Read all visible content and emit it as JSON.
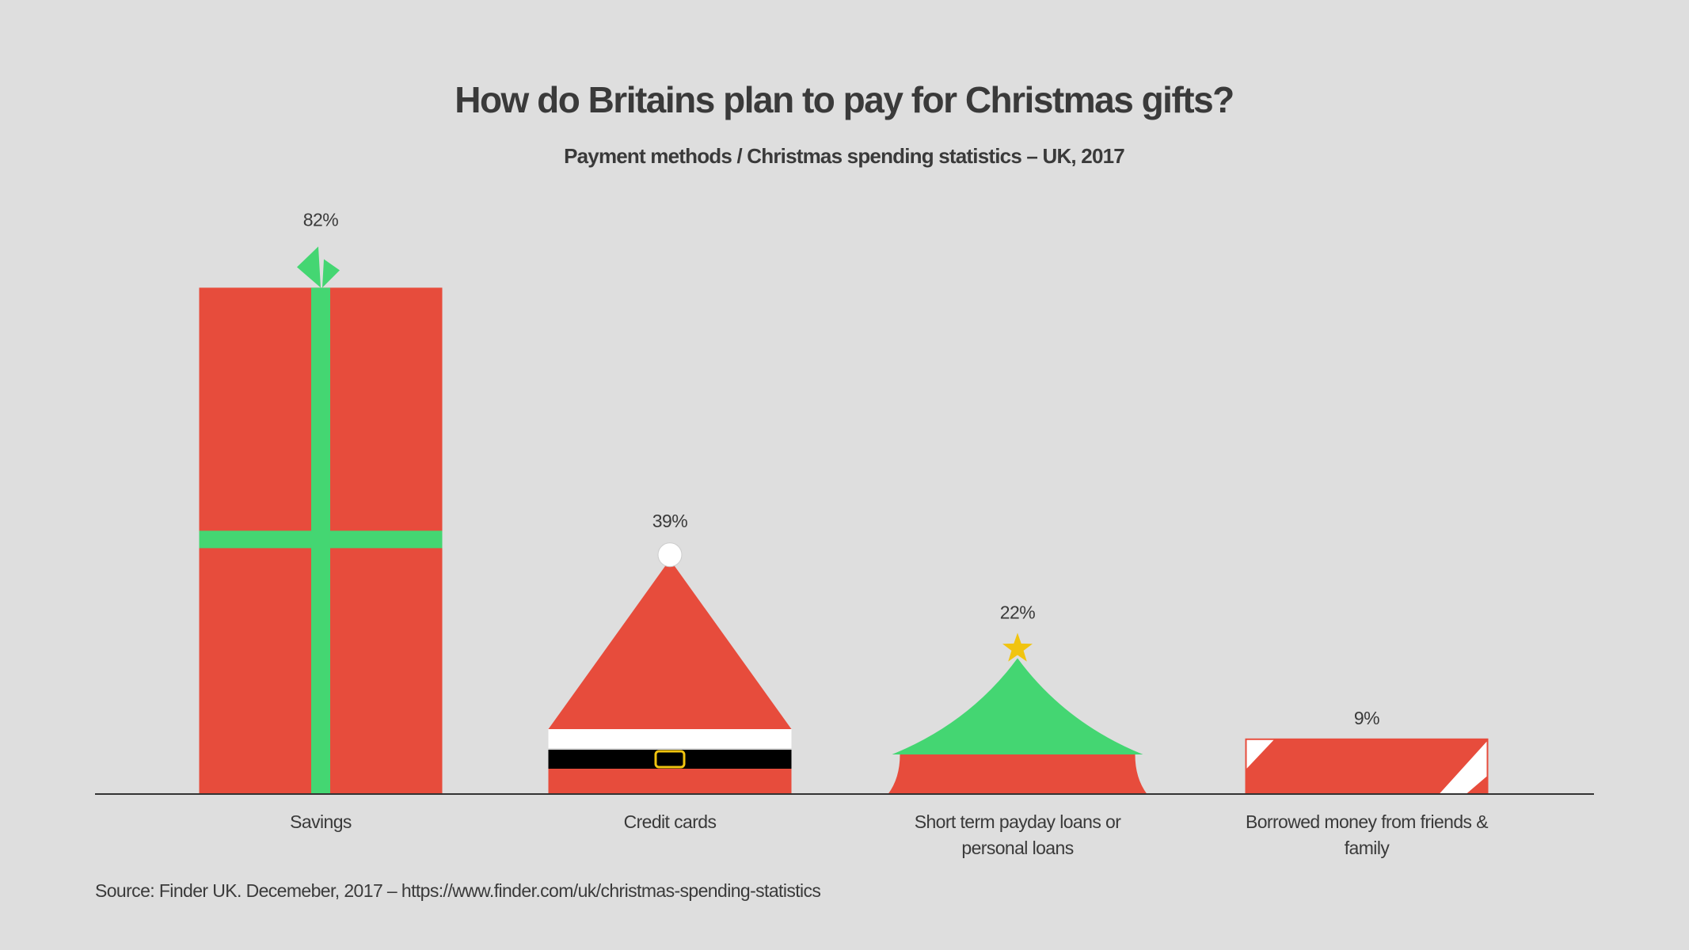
{
  "chart_data": {
    "type": "bar",
    "title": "How do Britains plan to pay for Christmas gifts?",
    "subtitle": "Payment methods / Christmas spending statistics – UK, 2017",
    "categories": [
      "Savings",
      "Credit cards",
      "Short term payday loans or personal loans",
      "Borrowed money from friends & family"
    ],
    "category_lines": [
      [
        "Savings"
      ],
      [
        "Credit cards"
      ],
      [
        "Short term payday loans or",
        "personal loans"
      ],
      [
        "Borrowed money from friends &",
        "family"
      ]
    ],
    "values": [
      82,
      39,
      22,
      9
    ],
    "value_labels": [
      "82%",
      "39%",
      "22%",
      "9%"
    ],
    "bar_styles": [
      "gift-box",
      "santa-hat",
      "christmas-tree",
      "candy-cane"
    ],
    "ylim": [
      0,
      100
    ],
    "grid": false,
    "source": "Source: Finder UK. Decemeber, 2017 –  https://www.finder.com/uk/christmas-spending-statistics",
    "colors": {
      "red": "#e74c3c",
      "green": "#44d672",
      "white": "#ffffff",
      "black": "#000000",
      "gold": "#f1c40f",
      "text": "#3a3a3a",
      "background": "#dedede"
    }
  }
}
